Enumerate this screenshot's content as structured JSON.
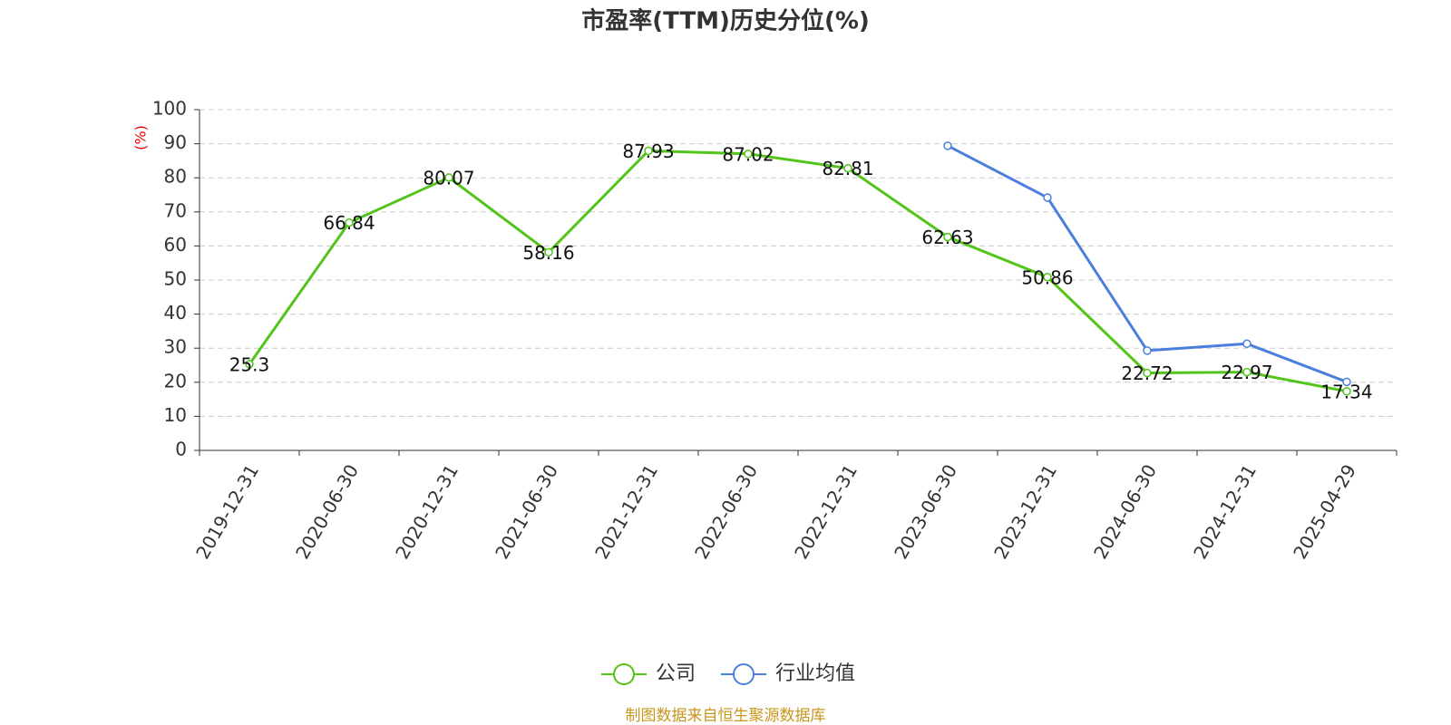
{
  "chart_data": {
    "type": "line",
    "title": "市盈率(TTM)历史分位(%)",
    "y_label": "(%)",
    "source": "制图数据来自恒生聚源数据库",
    "categories": [
      "2019-12-31",
      "2020-06-30",
      "2020-12-31",
      "2021-06-30",
      "2021-12-31",
      "2022-06-30",
      "2022-12-31",
      "2023-06-30",
      "2023-12-31",
      "2024-06-30",
      "2024-12-31",
      "2025-04-29"
    ],
    "series": [
      {
        "name": "公司",
        "color": "#52c41a",
        "values": [
          25.3,
          66.84,
          80.07,
          58.16,
          87.93,
          87.02,
          82.81,
          62.63,
          50.86,
          22.72,
          22.97,
          17.34
        ],
        "show_labels": true
      },
      {
        "name": "行业均值",
        "color": "#4a7fdc",
        "values": [
          null,
          null,
          null,
          null,
          null,
          null,
          null,
          89.4,
          74.2,
          29.3,
          31.3,
          20.1
        ],
        "show_labels": false
      }
    ],
    "ylim": [
      0,
      100
    ],
    "yticks": [
      0,
      10,
      20,
      30,
      40,
      50,
      60,
      70,
      80,
      90,
      100
    ],
    "grid": true
  }
}
